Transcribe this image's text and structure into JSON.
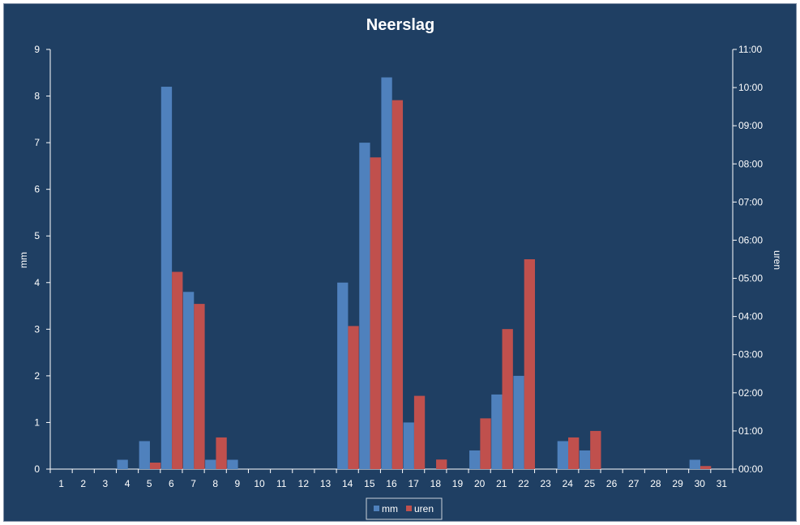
{
  "chart_data": {
    "type": "bar",
    "title": "Neerslag",
    "xlabel": "",
    "ylabel": "mm",
    "y2label": "uren",
    "categories": [
      "1",
      "2",
      "3",
      "4",
      "5",
      "6",
      "7",
      "8",
      "9",
      "10",
      "11",
      "12",
      "13",
      "14",
      "15",
      "16",
      "17",
      "18",
      "19",
      "20",
      "21",
      "22",
      "23",
      "24",
      "25",
      "26",
      "27",
      "28",
      "29",
      "30",
      "31"
    ],
    "ylim": [
      0,
      9
    ],
    "y_ticks": [
      "0",
      "1",
      "2",
      "3",
      "4",
      "5",
      "6",
      "7",
      "8",
      "9"
    ],
    "y2lim_hours": [
      0,
      11
    ],
    "y2_ticks": [
      "00:00",
      "01:00",
      "02:00",
      "03:00",
      "04:00",
      "05:00",
      "06:00",
      "07:00",
      "08:00",
      "09:00",
      "10:00",
      "11:00"
    ],
    "series": [
      {
        "name": "mm",
        "axis": "left",
        "color": "#4f81bd",
        "values": [
          0,
          0,
          0,
          0.2,
          0.6,
          8.2,
          3.8,
          0.2,
          0.2,
          0,
          0,
          0,
          0,
          4.0,
          7.0,
          8.4,
          1.0,
          0,
          0,
          0.4,
          1.6,
          2.0,
          0,
          0.6,
          0.4,
          0,
          0,
          0,
          0,
          0.2,
          0
        ]
      },
      {
        "name": "uren",
        "axis": "right",
        "unit": "hours",
        "color": "#c0504d",
        "values": [
          0,
          0,
          0,
          0,
          0.17,
          5.17,
          4.33,
          0.83,
          0,
          0,
          0,
          0,
          0,
          3.75,
          8.17,
          9.67,
          1.92,
          0.25,
          0,
          1.33,
          3.67,
          5.5,
          0,
          0.83,
          1.0,
          0,
          0,
          0,
          0,
          0.08,
          0
        ]
      }
    ],
    "legend_position": "bottom",
    "grid": false,
    "background_color": "#1f3f63"
  }
}
